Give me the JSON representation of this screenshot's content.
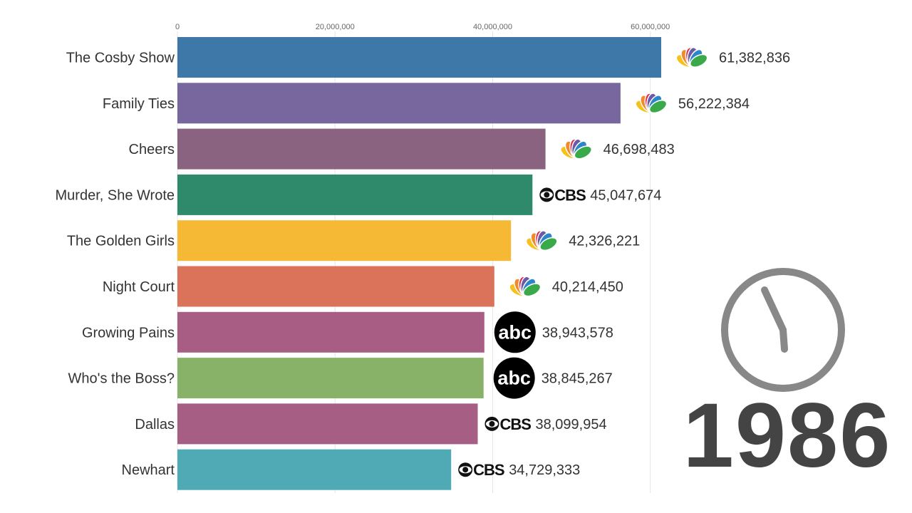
{
  "chart_data": {
    "type": "bar",
    "orientation": "horizontal",
    "categories": [
      "The Cosby Show",
      "Family Ties",
      "Cheers",
      "Murder, She Wrote",
      "The Golden Girls",
      "Night Court",
      "Growing Pains",
      "Who's the Boss?",
      "Dallas",
      "Newhart"
    ],
    "values": [
      61382836,
      56222384,
      46698483,
      45047674,
      42326221,
      40214450,
      38943578,
      38845267,
      38099954,
      34729333
    ],
    "value_labels": [
      "61,382,836",
      "56,222,384",
      "46,698,483",
      "45,047,674",
      "42,326,221",
      "40,214,450",
      "38,943,578",
      "38,845,267",
      "38,099,954",
      "34,729,333"
    ],
    "networks": [
      "nbc",
      "nbc",
      "nbc",
      "cbs",
      "nbc",
      "nbc",
      "abc",
      "abc",
      "cbs",
      "cbs"
    ],
    "colors": [
      "#3d78a8",
      "#78669e",
      "#8a6380",
      "#2e8a6a",
      "#f5b935",
      "#db735b",
      "#a85d85",
      "#88b268",
      "#a65e85",
      "#50aab5"
    ],
    "x_ticks": [
      0,
      20000000,
      40000000,
      60000000
    ],
    "x_tick_labels": [
      "0",
      "20,000,000",
      "40,000,000",
      "60,000,000"
    ],
    "xlim": [
      0,
      61382836
    ],
    "grid": true,
    "year": "1986",
    "network_logos": {
      "cbs_text": "CBS",
      "abc_text": "abc"
    }
  }
}
